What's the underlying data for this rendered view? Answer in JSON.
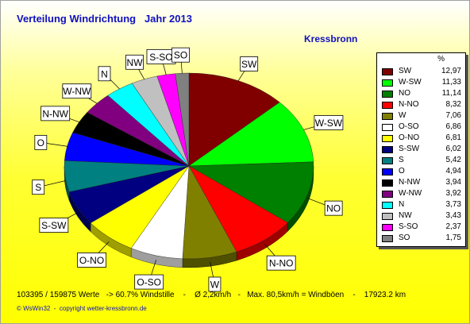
{
  "title": "Verteilung Windrichtung   Jahr 2013",
  "station": "Kressbronn",
  "legend_header": "%",
  "footer": "103395 / 159875 Werte   -> 60.7% Windstille    -    Ø 2,2km/h   -   Max. 80,5km/h = Windböen    -    17923.2 km",
  "copyright": "© WsWin32  -  copyright wetter-kressbronn.de",
  "chart_data": {
    "type": "pie",
    "title": "Verteilung Windrichtung   Jahr 2013",
    "categories": [
      "SW",
      "W-SW",
      "NO",
      "N-NO",
      "W",
      "O-SO",
      "O-NO",
      "S-SW",
      "S",
      "O",
      "N-NW",
      "W-NW",
      "N",
      "NW",
      "S-SO",
      "SO"
    ],
    "values": [
      12.97,
      11.33,
      11.14,
      8.32,
      7.06,
      6.86,
      6.81,
      6.02,
      5.42,
      4.94,
      3.94,
      3.92,
      3.73,
      3.43,
      2.37,
      1.75
    ],
    "display_values": [
      "12,97",
      "11,33",
      "11,14",
      "8,32",
      "7,06",
      "6,86",
      "6,81",
      "6,02",
      "5,42",
      "4,94",
      "3,94",
      "3,92",
      "3,73",
      "3,43",
      "2,37",
      "1,75"
    ],
    "colors": [
      "#800000",
      "#00ff00",
      "#008000",
      "#ff0000",
      "#808000",
      "#ffffff",
      "#ffff00",
      "#000080",
      "#008080",
      "#0000ff",
      "#000000",
      "#800080",
      "#00ffff",
      "#c0c0c0",
      "#ff00ff",
      "#808080"
    ],
    "pie_order": [
      "SW",
      "W-SW",
      "NO",
      "N-NO",
      "W",
      "O-SO",
      "O-NO",
      "S-SW",
      "S",
      "O",
      "N-NW",
      "W-NW",
      "N",
      "NW",
      "S-SO",
      "SO"
    ],
    "legend_placement": "right",
    "unit": "%"
  }
}
